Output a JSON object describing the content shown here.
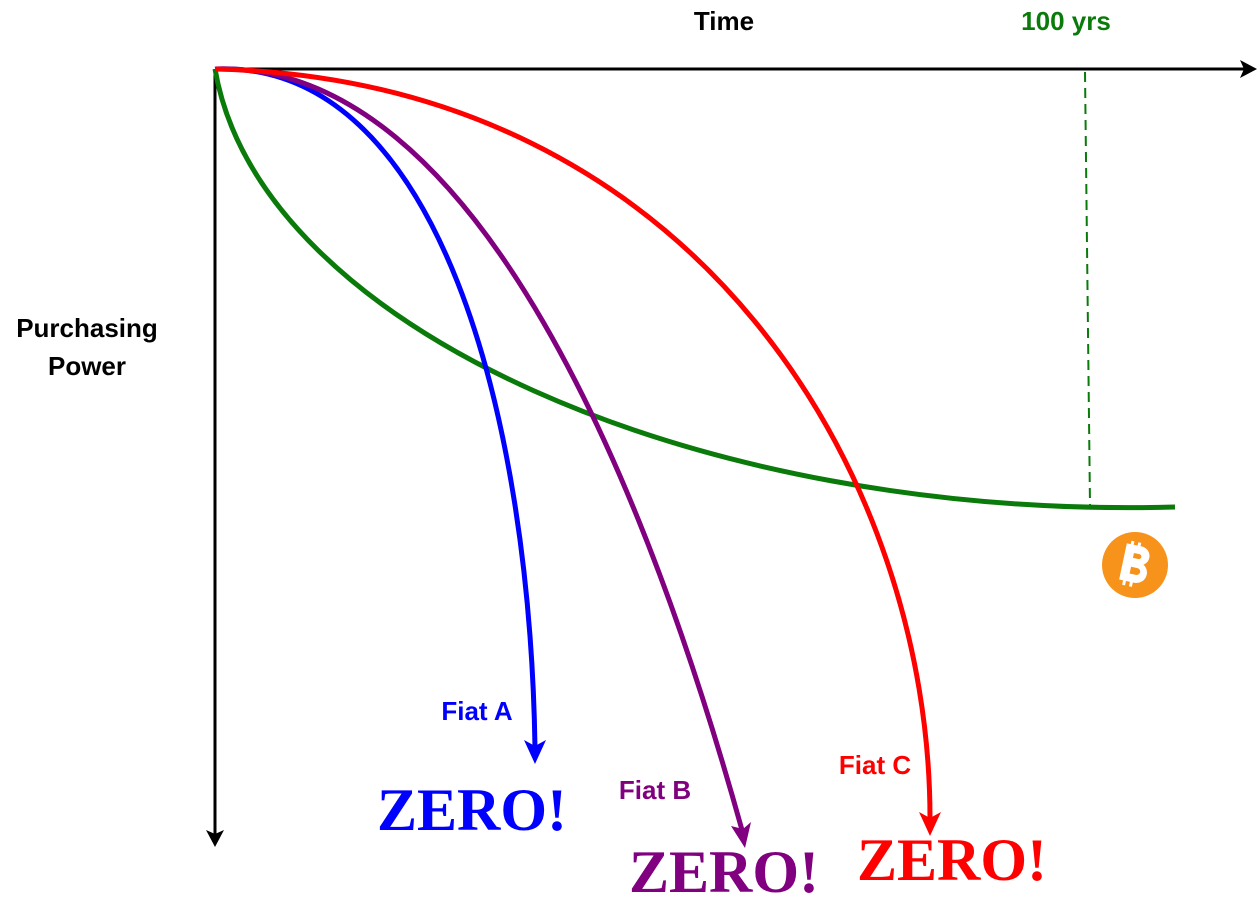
{
  "axes": {
    "x_label": "Time",
    "y_label": [
      "Purchasing",
      "Power"
    ],
    "marker": "100 yrs"
  },
  "curves": [
    {
      "label": "Fiat A",
      "result": "ZERO!"
    },
    {
      "label": "Fiat B",
      "result": "ZERO!"
    },
    {
      "label": "Fiat C",
      "result": "ZERO!"
    }
  ]
}
